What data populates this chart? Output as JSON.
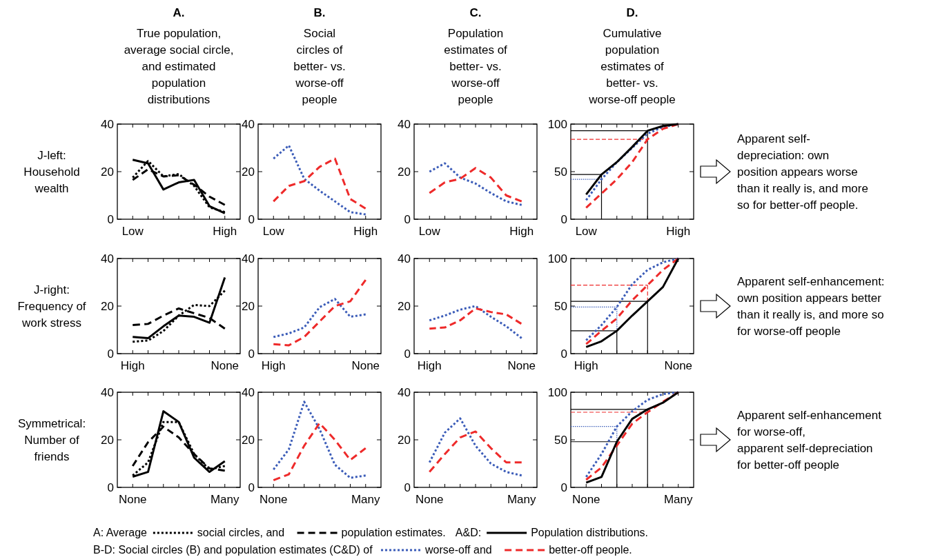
{
  "chart_data": [
    {
      "type": "line",
      "title": "A.",
      "subtitle": "True population,\naverage social circle,\nand estimated\npopulation\ndistributions",
      "ylabel": "J-left:\nHousehold\nwealth",
      "categories": [
        "Low",
        null,
        null,
        null,
        null,
        null,
        "High"
      ],
      "ylim": [
        0,
        40
      ],
      "yticks": [
        0,
        20,
        40
      ],
      "legend": "bottom",
      "legend_title": "A: Average",
      "series": [
        {
          "name": "social circles,  and",
          "color": "#000000",
          "line_style": "dotted",
          "values": [
            17.5,
            24.5,
            18,
            19,
            14,
            5,
            3
          ]
        },
        {
          "name": "population estimates.",
          "color": "#000000",
          "line_style": "dashed",
          "values": [
            16.5,
            21,
            18,
            18.5,
            14.5,
            9.5,
            6
          ]
        },
        {
          "color": "#000000",
          "line_style": "solid",
          "values": [
            25,
            23.5,
            12.5,
            15.5,
            16.5,
            5.5,
            2.5
          ]
        }
      ]
    },
    {
      "type": "line",
      "title": "B.",
      "subtitle": "Social\ncircles of\nbetter- vs.\nworse-off\npeople",
      "categories": [
        "Low",
        null,
        null,
        null,
        null,
        null,
        "High"
      ],
      "ylim": [
        0,
        40
      ],
      "yticks": [
        0,
        20,
        40
      ],
      "legend": "bottom",
      "legend_title": "B-D:  Social circles (B) and population estimates (C&D) of",
      "series": [
        {
          "name": "worse-off  and",
          "color": "#3b5cb8",
          "line_style": "dotted",
          "values": [
            25.5,
            31,
            17,
            12,
            7.5,
            3,
            2
          ]
        },
        {
          "name": "better-off people.",
          "color": "#ee2a2a",
          "line_style": "dashed",
          "values": [
            7.5,
            14,
            16,
            22,
            25.5,
            8.5,
            4.5
          ]
        }
      ]
    },
    {
      "type": "line",
      "title": "C.",
      "subtitle": "Population\nestimates of\nbetter- vs.\nworse-off\npeople",
      "categories": [
        "Low",
        null,
        null,
        null,
        null,
        null,
        "High"
      ],
      "ylim": [
        0,
        40
      ],
      "yticks": [
        0,
        20,
        40
      ],
      "series": [
        {
          "color": "#3b5cb8",
          "line_style": "dotted",
          "values": [
            20,
            23.5,
            17.5,
            15,
            11,
            7.5,
            6
          ]
        },
        {
          "color": "#ee2a2a",
          "line_style": "dashed",
          "values": [
            11,
            15.5,
            17,
            21.5,
            17.5,
            10,
            7.5
          ]
        }
      ]
    },
    {
      "type": "line",
      "title": "D.",
      "subtitle": "Cumulative\npopulation\nestimates of\nbetter- vs.\nworse-off people",
      "annotations": [
        "Apparent self-\ndepreciation: own\nposition appears worse\nthan it really is, and more\nso for better-off people."
      ],
      "categories": [
        "Low",
        null,
        null,
        null,
        null,
        null,
        "High"
      ],
      "ylim": [
        0,
        100
      ],
      "yticks": [
        0,
        50,
        100
      ],
      "legend": "bottom",
      "legend_title": "A&D:",
      "series": [
        {
          "color": "#3b5cb8",
          "line_style": "dotted",
          "values": [
            20,
            42,
            60,
            75,
            90,
            97,
            100
          ]
        },
        {
          "color": "#ee2a2a",
          "line_style": "dashed",
          "values": [
            12,
            27,
            42,
            60,
            84,
            95,
            100
          ]
        },
        {
          "name": "Population distributions.",
          "color": "#000000",
          "line_style": "solid",
          "values": [
            26,
            47,
            60,
            76,
            93,
            98,
            100
          ]
        }
      ],
      "ref_lines": [
        {
          "axis": "y",
          "value": 42,
          "color": "#3b5cb8",
          "line_style": "dotted"
        },
        {
          "axis": "y",
          "value": 84,
          "color": "#ee2a2a",
          "line_style": "dashed"
        },
        {
          "axis": "y",
          "value": 47,
          "color": "#000000",
          "line_style": "solid"
        },
        {
          "axis": "y",
          "value": 93,
          "color": "#000000",
          "line_style": "solid"
        }
      ]
    },
    {
      "type": "line",
      "ylabel": "J-right:\nFrequency of\nwork stress",
      "categories": [
        "High",
        null,
        null,
        null,
        null,
        null,
        "None"
      ],
      "ylim": [
        0,
        40
      ],
      "yticks": [
        0,
        20,
        40
      ],
      "series": [
        {
          "color": "#000000",
          "line_style": "dotted",
          "values": [
            5,
            5.5,
            9.5,
            16,
            20.5,
            20,
            26.5
          ]
        },
        {
          "color": "#000000",
          "line_style": "dashed",
          "values": [
            12,
            12.5,
            16,
            19,
            17,
            15,
            10.5
          ]
        },
        {
          "color": "#000000",
          "line_style": "solid",
          "values": [
            7,
            6.5,
            11.5,
            16,
            15.5,
            13,
            32
          ]
        }
      ]
    },
    {
      "type": "line",
      "categories": [
        "High",
        null,
        null,
        null,
        null,
        null,
        "None"
      ],
      "ylim": [
        0,
        40
      ],
      "yticks": [
        0,
        20,
        40
      ],
      "series": [
        {
          "color": "#3b5cb8",
          "line_style": "dotted",
          "values": [
            7,
            8.5,
            11,
            19.5,
            23,
            15.5,
            16.5
          ]
        },
        {
          "color": "#ee2a2a",
          "line_style": "dashed",
          "values": [
            4,
            3.5,
            7,
            13.5,
            20,
            22,
            31
          ]
        }
      ]
    },
    {
      "type": "line",
      "categories": [
        "High",
        null,
        null,
        null,
        null,
        null,
        "None"
      ],
      "ylim": [
        0,
        40
      ],
      "yticks": [
        0,
        20,
        40
      ],
      "series": [
        {
          "color": "#3b5cb8",
          "line_style": "dotted",
          "values": [
            14,
            16,
            18.5,
            20,
            15.5,
            11.5,
            6.5
          ]
        },
        {
          "color": "#ee2a2a",
          "line_style": "dashed",
          "values": [
            10.5,
            11,
            14,
            19,
            17.5,
            16.5,
            12.5
          ]
        }
      ]
    },
    {
      "type": "line",
      "annotations": [
        "Apparent self-enhancement:\nown position appears better\nthan it really is, and more so\nfor worse-off people"
      ],
      "categories": [
        "High",
        null,
        null,
        null,
        null,
        null,
        "None"
      ],
      "ylim": [
        0,
        100
      ],
      "yticks": [
        0,
        50,
        100
      ],
      "series": [
        {
          "color": "#3b5cb8",
          "line_style": "dotted",
          "values": [
            14,
            30,
            49,
            73,
            88,
            96,
            100
          ]
        },
        {
          "color": "#ee2a2a",
          "line_style": "dashed",
          "values": [
            10,
            24,
            37,
            56,
            72,
            88,
            100
          ]
        },
        {
          "color": "#000000",
          "line_style": "solid",
          "values": [
            7,
            13,
            24,
            40,
            55,
            70,
            100
          ]
        }
      ],
      "ref_lines": [
        {
          "axis": "y",
          "value": 49,
          "color": "#3b5cb8",
          "line_style": "dotted"
        },
        {
          "axis": "y",
          "value": 72,
          "color": "#ee2a2a",
          "line_style": "dashed"
        },
        {
          "axis": "y",
          "value": 24,
          "color": "#000000",
          "line_style": "solid"
        },
        {
          "axis": "y",
          "value": 55,
          "color": "#000000",
          "line_style": "solid"
        }
      ]
    },
    {
      "type": "line",
      "ylabel": "Symmetrical:\nNumber of\nfriends",
      "categories": [
        "None",
        null,
        null,
        null,
        null,
        null,
        "Many"
      ],
      "ylim": [
        0,
        40
      ],
      "yticks": [
        0,
        20,
        40
      ],
      "series": [
        {
          "color": "#000000",
          "line_style": "dotted",
          "values": [
            5,
            10.5,
            27.5,
            27.5,
            14,
            7.5,
            9
          ]
        },
        {
          "color": "#000000",
          "line_style": "dashed",
          "values": [
            9,
            19,
            25.5,
            21,
            14,
            8,
            7
          ]
        },
        {
          "color": "#000000",
          "line_style": "solid",
          "values": [
            4.5,
            6.5,
            32,
            27.5,
            12.5,
            6.5,
            11
          ]
        }
      ]
    },
    {
      "type": "line",
      "categories": [
        "None",
        null,
        null,
        null,
        null,
        null,
        "Many"
      ],
      "ylim": [
        0,
        40
      ],
      "yticks": [
        0,
        20,
        40
      ],
      "series": [
        {
          "color": "#3b5cb8",
          "line_style": "dotted",
          "values": [
            7.5,
            16,
            36,
            24.5,
            9.5,
            4,
            5
          ]
        },
        {
          "color": "#ee2a2a",
          "line_style": "dashed",
          "values": [
            3,
            5.5,
            17.5,
            27,
            20,
            11.5,
            16.5
          ]
        }
      ]
    },
    {
      "type": "line",
      "categories": [
        "None",
        null,
        null,
        null,
        null,
        null,
        "Many"
      ],
      "ylim": [
        0,
        40
      ],
      "yticks": [
        0,
        20,
        40
      ],
      "series": [
        {
          "color": "#3b5cb8",
          "line_style": "dotted",
          "values": [
            10.5,
            23,
            29,
            17.5,
            10,
            6.5,
            5
          ]
        },
        {
          "color": "#ee2a2a",
          "line_style": "dashed",
          "values": [
            6.5,
            14,
            21,
            23.5,
            16.5,
            10.5,
            10.5
          ]
        }
      ]
    },
    {
      "type": "line",
      "annotations": [
        "Apparent self-enhancement\nfor worse-off,\napparent self-depreciation\nfor better-off people"
      ],
      "categories": [
        "None",
        null,
        null,
        null,
        null,
        null,
        "Many"
      ],
      "ylim": [
        0,
        100
      ],
      "yticks": [
        0,
        50,
        100
      ],
      "series": [
        {
          "color": "#3b5cb8",
          "line_style": "dotted",
          "values": [
            11,
            35,
            64,
            80,
            92,
            98,
            100
          ]
        },
        {
          "color": "#ee2a2a",
          "line_style": "dashed",
          "values": [
            8,
            21,
            44,
            67,
            79,
            90,
            100
          ]
        },
        {
          "color": "#000000",
          "line_style": "solid",
          "values": [
            5,
            11,
            48,
            72,
            82,
            89,
            100
          ]
        }
      ],
      "ref_lines": [
        {
          "axis": "y",
          "value": 64,
          "color": "#3b5cb8",
          "line_style": "dotted"
        },
        {
          "axis": "y",
          "value": 79,
          "color": "#ee2a2a",
          "line_style": "dashed"
        },
        {
          "axis": "y",
          "value": 48,
          "color": "#000000",
          "line_style": "solid"
        },
        {
          "axis": "y",
          "value": 82,
          "color": "#000000",
          "line_style": "solid"
        }
      ]
    }
  ]
}
